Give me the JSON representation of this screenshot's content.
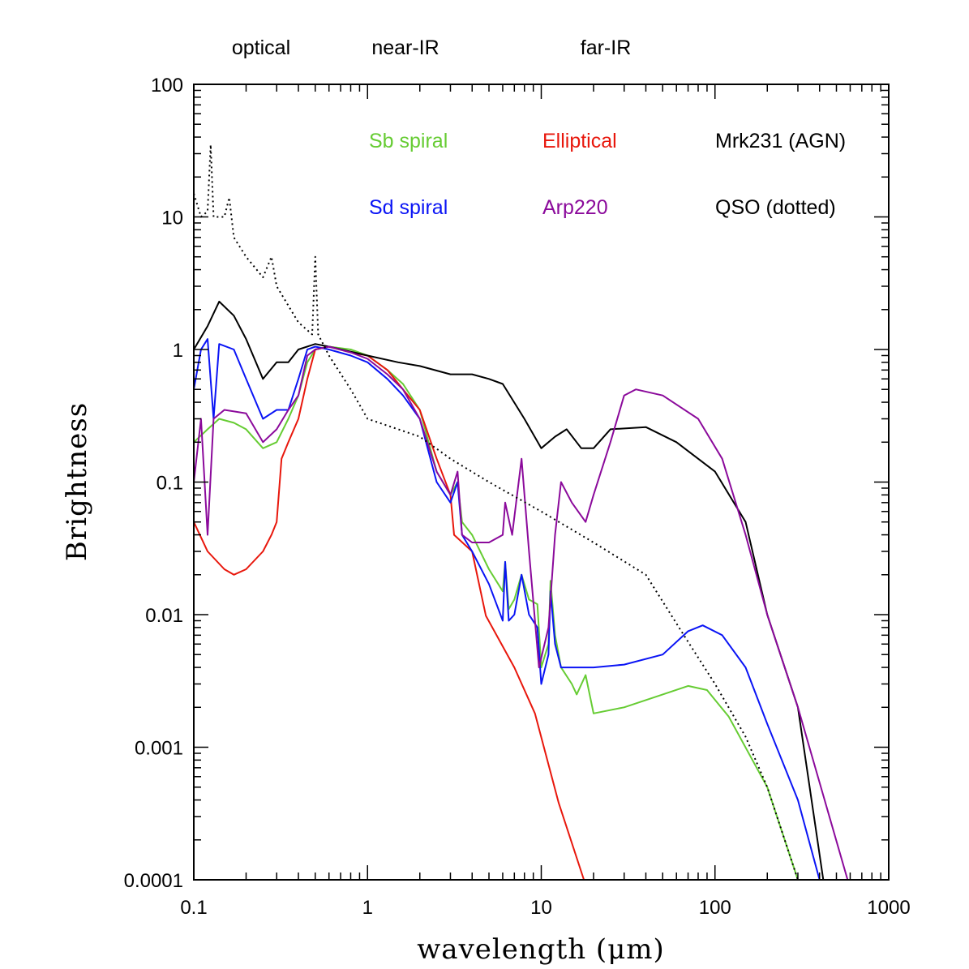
{
  "chart_data": {
    "type": "line",
    "title": "",
    "xlabel": "wavelength (μm)",
    "ylabel": "Brightness",
    "xscale": "log",
    "yscale": "log",
    "xlim": [
      0.1,
      1000
    ],
    "ylim": [
      0.0001,
      100
    ],
    "x_tick_labels": [
      "0.1",
      "1",
      "10",
      "100",
      "1000"
    ],
    "y_tick_labels": [
      "0.0001",
      "0.001",
      "0.01",
      "0.1",
      "1",
      "10",
      "100"
    ],
    "grid": false,
    "band_labels": [
      "optical",
      "near-IR",
      "far-IR"
    ],
    "legend_placement": "top-right (text labels in plot)",
    "series": [
      {
        "name": "Sb spiral",
        "color": "#66cc33",
        "style": "solid",
        "x": [
          0.1,
          0.12,
          0.14,
          0.17,
          0.2,
          0.25,
          0.3,
          0.35,
          0.4,
          0.45,
          0.5,
          0.6,
          0.8,
          1,
          1.3,
          1.6,
          2,
          2.5,
          3,
          3.3,
          3.5,
          4,
          5,
          6,
          6.2,
          6.5,
          7,
          7.7,
          8.5,
          9.5,
          10,
          11,
          11.3,
          12,
          13,
          15,
          16,
          18,
          20,
          30,
          50,
          70,
          90,
          120,
          200,
          300
        ],
        "y": [
          0.2,
          0.25,
          0.3,
          0.28,
          0.25,
          0.18,
          0.2,
          0.3,
          0.45,
          0.8,
          1.0,
          1.05,
          1.0,
          0.9,
          0.7,
          0.55,
          0.35,
          0.12,
          0.08,
          0.1,
          0.05,
          0.04,
          0.022,
          0.015,
          0.025,
          0.011,
          0.013,
          0.02,
          0.013,
          0.012,
          0.004,
          0.006,
          0.018,
          0.007,
          0.004,
          0.003,
          0.0025,
          0.0035,
          0.0018,
          0.002,
          0.0025,
          0.0029,
          0.0027,
          0.0017,
          0.0005,
          0.0001
        ]
      },
      {
        "name": "Elliptical",
        "color": "#e8170c",
        "style": "solid",
        "x": [
          0.1,
          0.12,
          0.15,
          0.17,
          0.2,
          0.25,
          0.28,
          0.3,
          0.32,
          0.35,
          0.4,
          0.45,
          0.5,
          0.6,
          0.8,
          1,
          1.3,
          1.6,
          2,
          2.5,
          3,
          3.15,
          4,
          4.8,
          7,
          9.2,
          12.6,
          17.6
        ],
        "y": [
          0.05,
          0.03,
          0.022,
          0.02,
          0.022,
          0.03,
          0.04,
          0.05,
          0.15,
          0.2,
          0.3,
          0.6,
          1.0,
          1.05,
          0.95,
          0.9,
          0.7,
          0.5,
          0.35,
          0.15,
          0.08,
          0.04,
          0.03,
          0.0098,
          0.004,
          0.0018,
          0.00038,
          0.0001
        ]
      },
      {
        "name": "Mrk231 (AGN)",
        "color": "#000000",
        "style": "solid",
        "x": [
          0.1,
          0.12,
          0.14,
          0.17,
          0.2,
          0.25,
          0.3,
          0.35,
          0.4,
          0.5,
          0.6,
          1,
          1.5,
          2,
          3,
          4,
          5,
          6,
          8,
          10,
          12,
          14,
          17,
          20,
          25,
          40,
          60,
          100,
          150,
          200,
          300,
          420
        ],
        "y": [
          1.0,
          1.5,
          2.3,
          1.8,
          1.2,
          0.6,
          0.8,
          0.8,
          1.0,
          1.1,
          1.05,
          0.9,
          0.8,
          0.75,
          0.65,
          0.65,
          0.6,
          0.55,
          0.3,
          0.18,
          0.22,
          0.25,
          0.18,
          0.18,
          0.25,
          0.26,
          0.2,
          0.12,
          0.05,
          0.01,
          0.002,
          0.0001
        ]
      },
      {
        "name": "Sd spiral",
        "color": "#0a14f5",
        "style": "solid",
        "x": [
          0.1,
          0.11,
          0.12,
          0.13,
          0.14,
          0.17,
          0.2,
          0.25,
          0.3,
          0.35,
          0.4,
          0.45,
          0.5,
          0.6,
          0.8,
          1,
          1.3,
          1.6,
          2,
          2.5,
          3,
          3.3,
          3.5,
          4,
          5,
          6,
          6.2,
          6.5,
          7,
          7.7,
          8.5,
          9.5,
          10,
          11,
          11.3,
          12,
          13,
          20,
          30,
          50,
          70,
          85,
          110,
          150,
          200,
          300,
          400
        ],
        "y": [
          0.5,
          1.0,
          1.2,
          0.3,
          1.1,
          1.0,
          0.6,
          0.3,
          0.35,
          0.35,
          0.6,
          1.0,
          1.05,
          1.0,
          0.9,
          0.8,
          0.6,
          0.45,
          0.3,
          0.1,
          0.07,
          0.1,
          0.04,
          0.03,
          0.017,
          0.009,
          0.025,
          0.009,
          0.01,
          0.02,
          0.01,
          0.008,
          0.003,
          0.005,
          0.015,
          0.006,
          0.004,
          0.004,
          0.0042,
          0.005,
          0.0075,
          0.0083,
          0.007,
          0.004,
          0.0015,
          0.0004,
          0.0001
        ]
      },
      {
        "name": "Arp220",
        "color": "#8b0a9b",
        "style": "solid",
        "x": [
          0.1,
          0.11,
          0.12,
          0.13,
          0.15,
          0.2,
          0.25,
          0.3,
          0.35,
          0.4,
          0.45,
          0.5,
          0.6,
          0.8,
          1,
          1.3,
          1.6,
          2,
          2.5,
          3,
          3.3,
          3.5,
          4,
          5,
          6,
          6.2,
          6.8,
          7.7,
          8.5,
          9.7,
          11,
          12,
          13,
          15,
          18,
          20,
          25,
          30,
          35,
          50,
          80,
          110,
          150,
          200,
          300,
          580
        ],
        "y": [
          0.1,
          0.3,
          0.04,
          0.3,
          0.35,
          0.33,
          0.2,
          0.25,
          0.35,
          0.45,
          0.9,
          1.0,
          1.05,
          0.95,
          0.85,
          0.65,
          0.5,
          0.3,
          0.12,
          0.08,
          0.12,
          0.04,
          0.035,
          0.035,
          0.04,
          0.07,
          0.04,
          0.15,
          0.03,
          0.004,
          0.008,
          0.04,
          0.1,
          0.07,
          0.05,
          0.08,
          0.2,
          0.45,
          0.5,
          0.45,
          0.3,
          0.15,
          0.04,
          0.01,
          0.002,
          0.0001
        ]
      },
      {
        "name": "QSO (dotted)",
        "color": "#000000",
        "style": "dotted",
        "x": [
          0.1,
          0.11,
          0.12,
          0.125,
          0.13,
          0.15,
          0.16,
          0.17,
          0.2,
          0.25,
          0.28,
          0.3,
          0.4,
          0.48,
          0.5,
          0.52,
          0.6,
          0.8,
          1,
          1.5,
          2,
          3,
          5,
          10,
          20,
          40,
          64,
          100,
          150,
          200,
          300
        ],
        "y": [
          15,
          10,
          11,
          35,
          10,
          10,
          14,
          7,
          5,
          3.5,
          5,
          3,
          1.6,
          1.3,
          5,
          1.3,
          0.9,
          0.5,
          0.3,
          0.25,
          0.22,
          0.15,
          0.1,
          0.06,
          0.035,
          0.02,
          0.0075,
          0.003,
          0.0012,
          0.0005,
          0.0001
        ]
      }
    ]
  }
}
